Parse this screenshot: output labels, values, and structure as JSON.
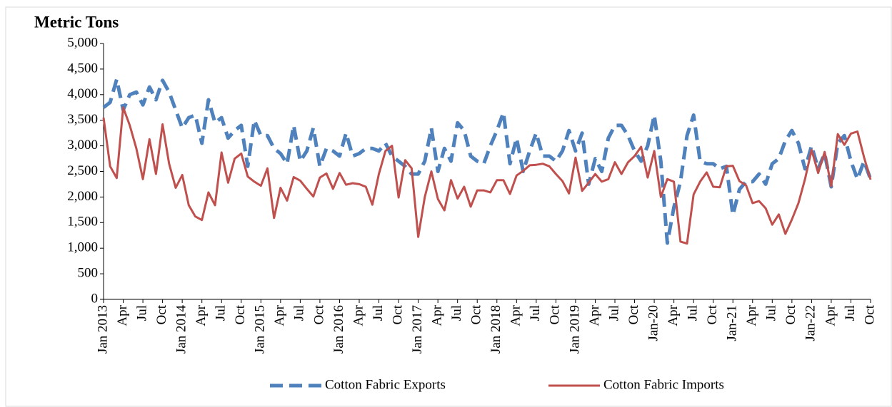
{
  "chart_data": {
    "type": "line",
    "y_label": "Metric Tons",
    "categories": [
      "Jan 2013",
      null,
      null,
      "Apr",
      null,
      null,
      "Jul",
      null,
      null,
      "Oct",
      null,
      null,
      "Jan 2014",
      null,
      null,
      "Apr",
      null,
      null,
      "Jul",
      null,
      null,
      "Oct",
      null,
      null,
      "Jan 2015",
      null,
      null,
      "Apr",
      null,
      null,
      "Jul",
      null,
      null,
      "Oct",
      null,
      null,
      "Jan 2016",
      null,
      null,
      "Apr",
      null,
      null,
      "Jul",
      null,
      null,
      "Oct",
      null,
      null,
      "Jan 2017",
      null,
      null,
      "Apr",
      null,
      null,
      "Jul",
      null,
      null,
      "Oct",
      null,
      null,
      "Jan 2018",
      null,
      null,
      "Apr",
      null,
      null,
      "Jul",
      null,
      null,
      "Oct",
      null,
      null,
      "Jan 2019",
      null,
      null,
      "Apr",
      null,
      null,
      "Jul",
      null,
      null,
      "Oct",
      null,
      null,
      "Jan-20",
      null,
      null,
      "Apr",
      null,
      null,
      "Jul",
      null,
      null,
      "Oct",
      null,
      null,
      "Jan-21",
      null,
      null,
      "Apr",
      null,
      null,
      "Jul",
      null,
      null,
      "Oct",
      null,
      null,
      "Jan-22",
      null,
      null,
      "Apr",
      null,
      null,
      "Jul",
      null,
      null,
      "Oct"
    ],
    "series": [
      {
        "name": "Cotton Fabric Exports",
        "color": "#4f81bd",
        "dash": true,
        "values": [
          3750,
          3850,
          4300,
          3700,
          4000,
          4050,
          3800,
          4150,
          3900,
          4280,
          4050,
          3700,
          3350,
          3550,
          3600,
          3050,
          3900,
          3450,
          3550,
          3150,
          3300,
          3400,
          2600,
          3500,
          3200,
          3200,
          2950,
          2850,
          2650,
          3400,
          2700,
          2900,
          3350,
          2600,
          2950,
          2900,
          2800,
          3250,
          2800,
          2850,
          2950,
          2950,
          2900,
          3050,
          2800,
          2700,
          2600,
          2450,
          2450,
          2700,
          3350,
          2500,
          2950,
          2700,
          3450,
          3300,
          2800,
          2700,
          2650,
          3000,
          3300,
          3650,
          2650,
          3150,
          2500,
          2900,
          3250,
          2800,
          2800,
          2700,
          2900,
          3300,
          2900,
          3250,
          2250,
          2750,
          2500,
          3150,
          3400,
          3400,
          3200,
          2900,
          2700,
          3000,
          3600,
          2700,
          1100,
          1800,
          2300,
          3200,
          3600,
          2700,
          2650,
          2650,
          2550,
          2600,
          1650,
          2150,
          2300,
          2300,
          2450,
          2250,
          2650,
          2750,
          3100,
          3300,
          3050,
          2550,
          3000,
          2550,
          2850,
          2200,
          3050,
          3200,
          2700,
          2350,
          2700,
          2350
        ]
      },
      {
        "name": "Cotton Fabric Imports",
        "color": "#c0504d",
        "dash": false,
        "values": [
          3550,
          2600,
          2370,
          3750,
          3400,
          2950,
          2350,
          3130,
          2450,
          3420,
          2650,
          2180,
          2430,
          1840,
          1620,
          1550,
          2090,
          1840,
          2870,
          2280,
          2750,
          2850,
          2400,
          2300,
          2220,
          2560,
          1590,
          2180,
          1930,
          2390,
          2320,
          2160,
          2010,
          2380,
          2460,
          2160,
          2470,
          2240,
          2270,
          2250,
          2200,
          1850,
          2450,
          2900,
          3000,
          1990,
          2720,
          2560,
          1220,
          2000,
          2500,
          1960,
          1740,
          2330,
          1970,
          2200,
          1810,
          2130,
          2130,
          2090,
          2330,
          2330,
          2060,
          2420,
          2510,
          2620,
          2630,
          2650,
          2600,
          2450,
          2310,
          2070,
          2770,
          2120,
          2280,
          2450,
          2300,
          2350,
          2680,
          2450,
          2680,
          2800,
          2980,
          2380,
          2900,
          2000,
          2350,
          2300,
          1130,
          1090,
          2050,
          2300,
          2480,
          2200,
          2190,
          2600,
          2610,
          2310,
          2230,
          1880,
          1920,
          1780,
          1460,
          1660,
          1280,
          1560,
          1880,
          2350,
          2920,
          2470,
          2880,
          2210,
          3230,
          3020,
          3240,
          3280,
          2780,
          2340
        ]
      }
    ],
    "ylim": [
      0,
      5000
    ],
    "yticks": [
      0,
      500,
      {
        "value": 1000,
        "label": "1,000"
      },
      {
        "value": 1500,
        "label": "1,500"
      },
      {
        "value": 2000,
        "label": "2,000"
      },
      {
        "value": 2500,
        "label": "2,500"
      },
      {
        "value": 3000,
        "label": "3,000"
      },
      {
        "value": 3500,
        "label": "3,500"
      },
      {
        "value": 4000,
        "label": "4,000"
      },
      {
        "value": 4500,
        "label": "4,500"
      },
      {
        "value": 5000,
        "label": "5,000"
      }
    ],
    "legend": "bottom"
  }
}
